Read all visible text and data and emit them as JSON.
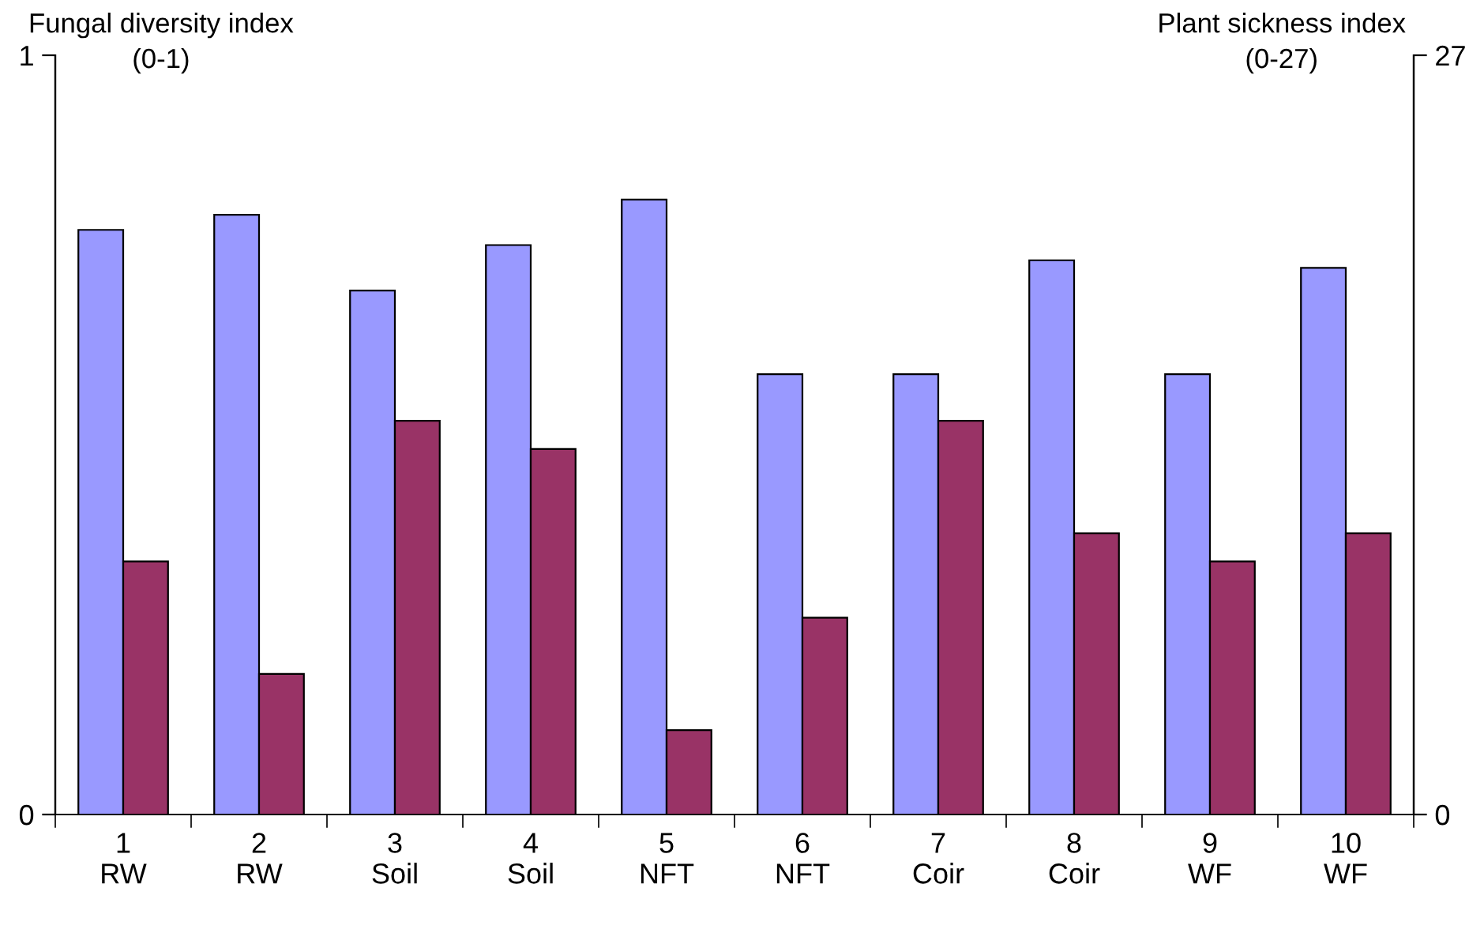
{
  "chart_data": {
    "type": "bar",
    "categories": [
      "1\nRW",
      "2\nRW",
      "3\nSoil",
      "4\nSoil",
      "5\nNFT",
      "6\nNFT",
      "7\nCoir",
      "8\nCoir",
      "9\nWF",
      "10\nWF"
    ],
    "ylabel": "Fungal diversity index\n(0-1)",
    "y2label": "Plant sickness index\n(0-27)",
    "ylim": [
      0,
      1
    ],
    "yticks": [
      0,
      1
    ],
    "y2lim": [
      0,
      27
    ],
    "y2ticks": [
      0,
      27
    ],
    "series": [
      {
        "color": "#9999ff",
        "values": [
          0.77,
          0.79,
          0.69,
          0.75,
          0.81,
          0.58,
          0.58,
          0.73,
          0.58,
          0.72
        ]
      },
      {
        "color": "#993366",
        "axis": "y2",
        "values": [
          9,
          5,
          14,
          13,
          3,
          7,
          14,
          10,
          9,
          10
        ]
      }
    ],
    "grid": false,
    "legend": false
  }
}
